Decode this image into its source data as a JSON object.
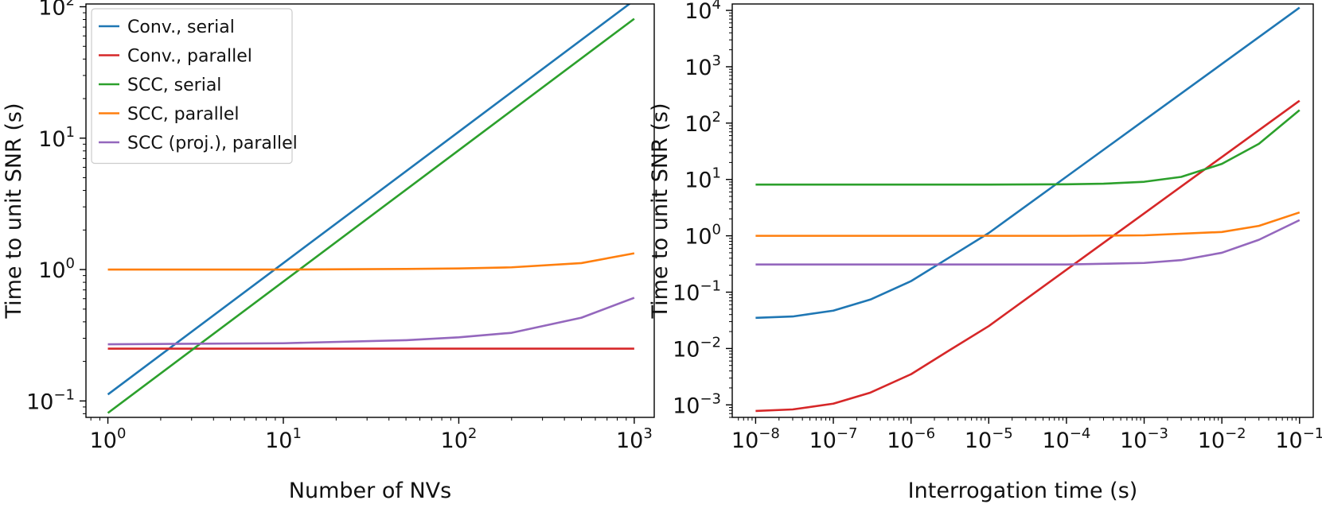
{
  "colors": {
    "conv_serial": "#1f77b4",
    "conv_parallel": "#d62728",
    "scc_serial": "#2ca02c",
    "scc_parallel": "#ff7f0e",
    "scc_proj_parallel": "#9467bd"
  },
  "chart_data": [
    {
      "type": "line",
      "xscale": "log",
      "yscale": "log",
      "xlabel": "Number of NVs",
      "ylabel": "Time to unit SNR (s)",
      "xlim": [
        0.75,
        1300
      ],
      "ylim": [
        0.075,
        105
      ],
      "xticks": [
        {
          "value": 1,
          "base": "10",
          "exp": "0"
        },
        {
          "value": 10,
          "base": "10",
          "exp": "1"
        },
        {
          "value": 100,
          "base": "10",
          "exp": "2"
        },
        {
          "value": 1000,
          "base": "10",
          "exp": "3"
        }
      ],
      "yticks": [
        {
          "value": 0.1,
          "base": "10",
          "exp": "−1"
        },
        {
          "value": 1,
          "base": "10",
          "exp": "0"
        },
        {
          "value": 10,
          "base": "10",
          "exp": "1"
        },
        {
          "value": 100,
          "base": "10",
          "exp": "2"
        }
      ],
      "legend_position": "top-left",
      "series": [
        {
          "name": "Conv., serial",
          "color_key": "conv_serial",
          "x": [
            1,
            10,
            100,
            1000
          ],
          "y": [
            0.112,
            1.12,
            11.2,
            112
          ]
        },
        {
          "name": "Conv., parallel",
          "color_key": "conv_parallel",
          "x": [
            1,
            10,
            100,
            1000
          ],
          "y": [
            0.25,
            0.25,
            0.25,
            0.25
          ]
        },
        {
          "name": "SCC, serial",
          "color_key": "scc_serial",
          "x": [
            1,
            10,
            100,
            1000
          ],
          "y": [
            0.081,
            0.81,
            8.1,
            81
          ]
        },
        {
          "name": "SCC, parallel",
          "color_key": "scc_parallel",
          "x": [
            1,
            10,
            50,
            100,
            200,
            500,
            1000
          ],
          "y": [
            1.0,
            1.0,
            1.01,
            1.02,
            1.04,
            1.12,
            1.33
          ]
        },
        {
          "name": "SCC (proj.), parallel",
          "color_key": "scc_proj_parallel",
          "x": [
            1,
            10,
            50,
            100,
            200,
            500,
            1000
          ],
          "y": [
            0.27,
            0.275,
            0.29,
            0.305,
            0.33,
            0.43,
            0.61
          ]
        }
      ]
    },
    {
      "type": "line",
      "xscale": "log",
      "yscale": "log",
      "xlabel": "Interrogation time (s)",
      "ylabel": "Time to unit SNR (s)",
      "xlim": [
        5e-09,
        0.15
      ],
      "ylim": [
        0.0006,
        13000
      ],
      "xticks": [
        {
          "value": 1e-08,
          "base": "10",
          "exp": "−8"
        },
        {
          "value": 1e-07,
          "base": "10",
          "exp": "−7"
        },
        {
          "value": 1e-06,
          "base": "10",
          "exp": "−6"
        },
        {
          "value": 1e-05,
          "base": "10",
          "exp": "−5"
        },
        {
          "value": 0.0001,
          "base": "10",
          "exp": "−4"
        },
        {
          "value": 0.001,
          "base": "10",
          "exp": "−3"
        },
        {
          "value": 0.01,
          "base": "10",
          "exp": "−2"
        },
        {
          "value": 0.1,
          "base": "10",
          "exp": "−1"
        }
      ],
      "yticks": [
        {
          "value": 0.001,
          "base": "10",
          "exp": "−3"
        },
        {
          "value": 0.01,
          "base": "10",
          "exp": "−2"
        },
        {
          "value": 0.1,
          "base": "10",
          "exp": "−1"
        },
        {
          "value": 1,
          "base": "10",
          "exp": "0"
        },
        {
          "value": 10,
          "base": "10",
          "exp": "1"
        },
        {
          "value": 100,
          "base": "10",
          "exp": "2"
        },
        {
          "value": 1000,
          "base": "10",
          "exp": "3"
        },
        {
          "value": 10000,
          "base": "10",
          "exp": "4"
        }
      ],
      "series": [
        {
          "name": "Conv., serial",
          "color_key": "conv_serial",
          "x": [
            1e-08,
            3e-08,
            1e-07,
            3e-07,
            1e-06,
            3e-06,
            1e-05,
            0.0001,
            0.001,
            0.01,
            0.1
          ],
          "y": [
            0.035,
            0.037,
            0.047,
            0.074,
            0.157,
            0.4,
            1.12,
            11.2,
            112,
            1120,
            11200
          ]
        },
        {
          "name": "Conv., parallel",
          "color_key": "conv_parallel",
          "x": [
            1e-08,
            3e-08,
            1e-07,
            3e-07,
            1e-06,
            3e-06,
            1e-05,
            0.0001,
            0.001,
            0.01,
            0.1
          ],
          "y": [
            0.00078,
            0.00083,
            0.00105,
            0.00165,
            0.0035,
            0.009,
            0.025,
            0.25,
            2.5,
            25,
            250
          ]
        },
        {
          "name": "SCC, serial",
          "color_key": "scc_serial",
          "x": [
            1e-08,
            1e-06,
            1e-05,
            0.0001,
            0.0003,
            0.001,
            0.003,
            0.01,
            0.03,
            0.1
          ],
          "y": [
            8.1,
            8.1,
            8.1,
            8.2,
            8.4,
            9.1,
            11.1,
            18.9,
            43,
            170
          ]
        },
        {
          "name": "SCC, parallel",
          "color_key": "scc_parallel",
          "x": [
            1e-08,
            1e-06,
            1e-05,
            0.0001,
            0.001,
            0.01,
            0.03,
            0.1
          ],
          "y": [
            1.0,
            1.0,
            1.0,
            1.0,
            1.02,
            1.17,
            1.5,
            2.6
          ]
        },
        {
          "name": "SCC (proj.), parallel",
          "color_key": "scc_proj_parallel",
          "x": [
            1e-08,
            1e-06,
            1e-05,
            0.0001,
            0.001,
            0.003,
            0.01,
            0.03,
            0.1
          ],
          "y": [
            0.31,
            0.31,
            0.31,
            0.31,
            0.33,
            0.37,
            0.5,
            0.85,
            1.9
          ]
        }
      ]
    }
  ]
}
